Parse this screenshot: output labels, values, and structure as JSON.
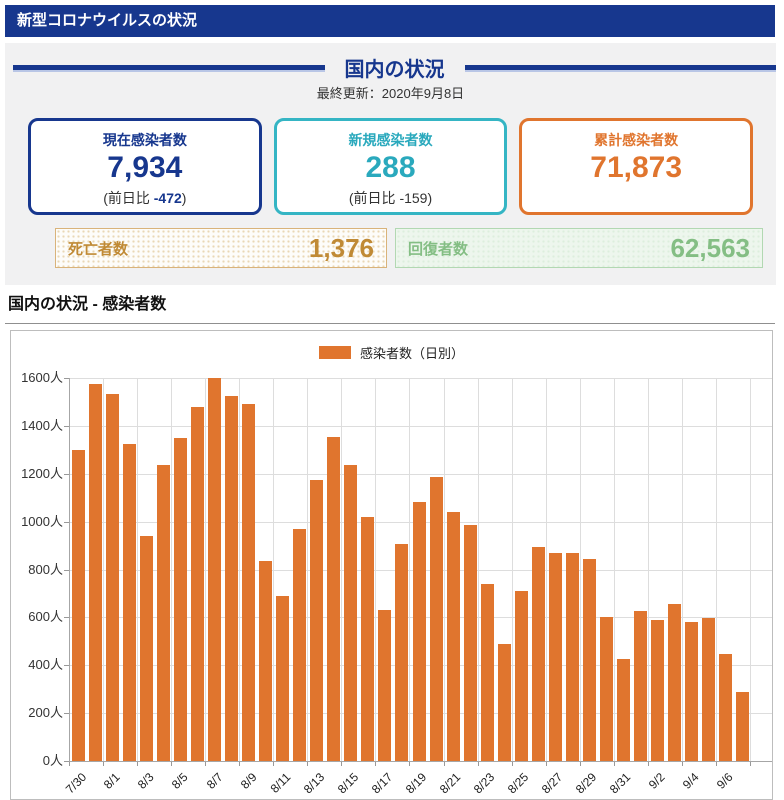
{
  "app_header": {
    "title": "新型コロナウイルスの状況"
  },
  "panel": {
    "title": "国内の状況",
    "last_updated": "最終更新：2020年9月8日",
    "cards": [
      {
        "label": "現在感染者数",
        "value": "7,934",
        "delta_open": "(前日比 ",
        "delta_value": "-472",
        "delta_close": ")",
        "accent": "#17378e"
      },
      {
        "label": "新規感染者数",
        "value": "288",
        "delta_open": "(前日比 ",
        "delta_value": "-159",
        "delta_close": ")",
        "accent": "#35b5c4"
      },
      {
        "label": "累計感染者数",
        "value": "71,873",
        "delta_open": "",
        "delta_value": "",
        "delta_close": "",
        "accent": "#e0752e"
      }
    ],
    "subcards": [
      {
        "label": "死亡者数",
        "value": "1,376",
        "accent": "#c08a35"
      },
      {
        "label": "回復者数",
        "value": "62,563",
        "accent": "#84be84"
      }
    ]
  },
  "chart_section": {
    "heading": "国内の状況 - 感染者数"
  },
  "chart_data": {
    "type": "bar",
    "title": "",
    "legend": "感染者数（日別）",
    "bar_color": "#e0752e",
    "grid": true,
    "legend_position": "top",
    "ylim": [
      0,
      1600
    ],
    "ytick_step": 200,
    "ylabel_suffix": "人",
    "xtick_every": 2,
    "categories": [
      "7/30",
      "7/31",
      "8/1",
      "8/2",
      "8/3",
      "8/4",
      "8/5",
      "8/6",
      "8/7",
      "8/8",
      "8/9",
      "8/10",
      "8/11",
      "8/12",
      "8/13",
      "8/14",
      "8/15",
      "8/16",
      "8/17",
      "8/18",
      "8/19",
      "8/20",
      "8/21",
      "8/22",
      "8/23",
      "8/24",
      "8/25",
      "8/26",
      "8/27",
      "8/28",
      "8/29",
      "8/30",
      "8/31",
      "9/1",
      "9/2",
      "9/3",
      "9/4",
      "9/5",
      "9/6",
      "9/7"
    ],
    "values": [
      1300,
      1575,
      1535,
      1325,
      940,
      1235,
      1350,
      1480,
      1600,
      1525,
      1490,
      835,
      690,
      970,
      1175,
      1355,
      1235,
      1020,
      630,
      905,
      1080,
      1185,
      1040,
      985,
      740,
      490,
      710,
      895,
      870,
      870,
      845,
      600,
      428,
      625,
      590,
      655,
      580,
      598,
      445,
      290
    ]
  }
}
